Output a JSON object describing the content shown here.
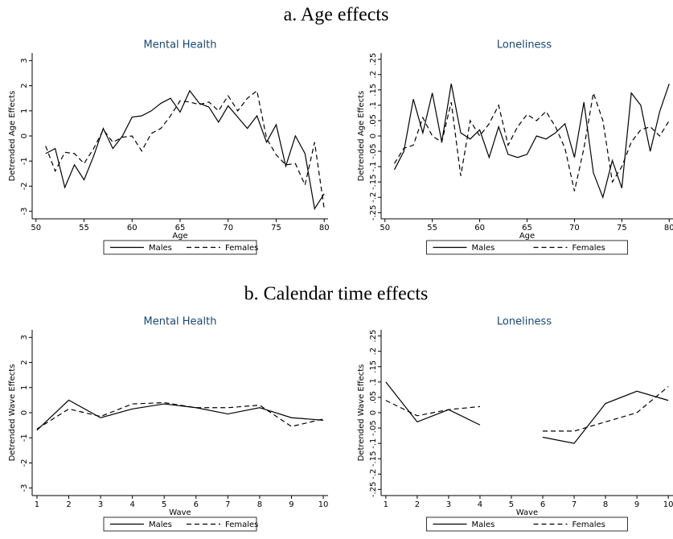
{
  "panels": [
    "a. Age effects",
    "b. Calendar time effects"
  ],
  "chart_data": [
    {
      "type": "line",
      "title": "Mental Health",
      "x_label": "Age",
      "y_label": "Detrended Age Effects",
      "x": [
        51,
        52,
        53,
        54,
        55,
        56,
        57,
        58,
        59,
        60,
        61,
        62,
        63,
        64,
        65,
        66,
        67,
        68,
        69,
        70,
        71,
        72,
        73,
        74,
        75,
        76,
        77,
        78,
        79,
        80
      ],
      "xlim": [
        49.6,
        80.4
      ],
      "xticks": [
        50,
        55,
        60,
        65,
        70,
        75,
        80
      ],
      "ylim": [
        -3.3,
        3.3
      ],
      "yticks": [
        3,
        2,
        1,
        0,
        -1,
        -2,
        -3
      ],
      "series": [
        {
          "name": "Males",
          "color": "#000000",
          "dash": "solid",
          "values": [
            -0.7,
            -0.5,
            -2.05,
            -1.15,
            -1.75,
            -0.8,
            0.3,
            -0.5,
            0.0,
            0.75,
            0.8,
            1.0,
            1.3,
            1.5,
            0.95,
            1.8,
            1.3,
            1.15,
            0.55,
            1.2,
            0.75,
            0.3,
            0.8,
            -0.25,
            0.45,
            -1.2,
            0.0,
            -0.7,
            -2.9,
            -2.3
          ]
        },
        {
          "name": "Females",
          "color": "#000000",
          "dash": "dashed",
          "values": [
            -0.4,
            -1.4,
            -0.65,
            -0.7,
            -1.1,
            -0.5,
            0.25,
            -0.25,
            -0.05,
            0.0,
            -0.6,
            0.1,
            0.3,
            0.8,
            1.4,
            1.35,
            1.25,
            1.35,
            1.0,
            1.6,
            1.0,
            1.5,
            1.8,
            -0.1,
            -0.75,
            -1.15,
            -1.1,
            -1.95,
            -0.25,
            -2.9
          ]
        }
      ]
    },
    {
      "type": "line",
      "title": "Loneliness",
      "x_label": "Age",
      "y_label": "Detrended Age Effects",
      "x": [
        51,
        52,
        53,
        54,
        55,
        56,
        57,
        58,
        59,
        60,
        61,
        62,
        63,
        64,
        65,
        66,
        67,
        68,
        69,
        70,
        71,
        72,
        73,
        74,
        75,
        76,
        77,
        78,
        79,
        80
      ],
      "xlim": [
        49.6,
        80.4
      ],
      "xticks": [
        50,
        55,
        60,
        65,
        70,
        75,
        80
      ],
      "ylim": [
        -0.27,
        0.27
      ],
      "yticks": [
        {
          "value": 0.25,
          "label": ".25"
        },
        {
          "value": 0.2,
          "label": ".2"
        },
        {
          "value": 0.15,
          "label": ".15"
        },
        {
          "value": 0.1,
          "label": ".1"
        },
        {
          "value": 0.05,
          "label": ".05"
        },
        0,
        {
          "value": -0.05,
          "label": "-.05"
        },
        {
          "value": -0.1,
          "label": "-.1"
        },
        {
          "value": -0.15,
          "label": "-.15"
        },
        {
          "value": -0.2,
          "label": "-.2"
        },
        {
          "value": -0.25,
          "label": "-.25"
        }
      ],
      "series": [
        {
          "name": "Males",
          "color": "#000000",
          "dash": "solid",
          "values": [
            -0.11,
            -0.05,
            0.12,
            0.01,
            0.14,
            -0.02,
            0.17,
            0.01,
            -0.01,
            0.02,
            -0.07,
            0.03,
            -0.06,
            -0.07,
            -0.06,
            0.0,
            -0.01,
            0.01,
            0.04,
            -0.07,
            0.11,
            -0.12,
            -0.2,
            -0.08,
            -0.17,
            0.14,
            0.1,
            -0.05,
            0.08,
            0.17
          ]
        },
        {
          "name": "Females",
          "color": "#000000",
          "dash": "dashed",
          "values": [
            -0.09,
            -0.04,
            -0.03,
            0.06,
            0.0,
            -0.02,
            0.11,
            -0.13,
            0.05,
            0.0,
            0.04,
            0.1,
            -0.03,
            0.03,
            0.07,
            0.05,
            0.08,
            0.03,
            -0.04,
            -0.18,
            -0.04,
            0.14,
            0.05,
            -0.15,
            -0.1,
            -0.02,
            0.02,
            0.03,
            0.0,
            0.05
          ]
        }
      ]
    },
    {
      "type": "line",
      "title": "Mental Health",
      "x_label": "Wave",
      "y_label": "Detrended Wave Effects",
      "x": [
        1,
        2,
        3,
        4,
        5,
        6,
        7,
        8,
        9,
        10
      ],
      "xlim": [
        0.85,
        10.15
      ],
      "xticks": [
        1,
        2,
        3,
        4,
        5,
        6,
        7,
        8,
        9,
        10
      ],
      "ylim": [
        -3.3,
        3.3
      ],
      "yticks": [
        3,
        2,
        1,
        0,
        -1,
        -2,
        -3
      ],
      "series": [
        {
          "name": "Males",
          "color": "#000000",
          "dash": "solid",
          "values": [
            -0.7,
            0.5,
            -0.2,
            0.15,
            0.35,
            0.2,
            -0.05,
            0.2,
            -0.2,
            -0.3
          ]
        },
        {
          "name": "Females",
          "color": "#000000",
          "dash": "dashed",
          "values": [
            -0.65,
            0.15,
            -0.15,
            0.35,
            0.4,
            0.2,
            0.2,
            0.3,
            -0.55,
            -0.25
          ]
        }
      ]
    },
    {
      "type": "line",
      "title": "Loneliness",
      "x_label": "Wave",
      "y_label": "Detrended Wave Effects",
      "x": [
        1,
        2,
        3,
        4,
        5,
        6,
        7,
        8,
        9,
        10
      ],
      "xlim": [
        0.85,
        10.15
      ],
      "xticks": [
        1,
        2,
        3,
        4,
        5,
        6,
        7,
        8,
        9,
        10
      ],
      "ylim": [
        -0.27,
        0.27
      ],
      "yticks": [
        {
          "value": 0.25,
          "label": ".25"
        },
        {
          "value": 0.2,
          "label": ".2"
        },
        {
          "value": 0.15,
          "label": ".15"
        },
        {
          "value": 0.1,
          "label": ".1"
        },
        {
          "value": 0.05,
          "label": ".05"
        },
        0,
        {
          "value": -0.05,
          "label": "-.05"
        },
        {
          "value": -0.1,
          "label": "-.1"
        },
        {
          "value": -0.15,
          "label": "-.15"
        },
        {
          "value": -0.2,
          "label": "-.2"
        },
        {
          "value": -0.25,
          "label": "-.25"
        }
      ],
      "series": [
        {
          "name": "Males",
          "color": "#000000",
          "dash": "solid",
          "values": [
            0.1,
            -0.03,
            0.01,
            -0.04,
            null,
            -0.08,
            -0.1,
            0.03,
            0.07,
            0.04
          ]
        },
        {
          "name": "Females",
          "color": "#000000",
          "dash": "dashed",
          "values": [
            0.04,
            -0.01,
            0.01,
            0.02,
            null,
            -0.06,
            -0.06,
            -0.03,
            0.0,
            0.085
          ]
        }
      ]
    }
  ]
}
